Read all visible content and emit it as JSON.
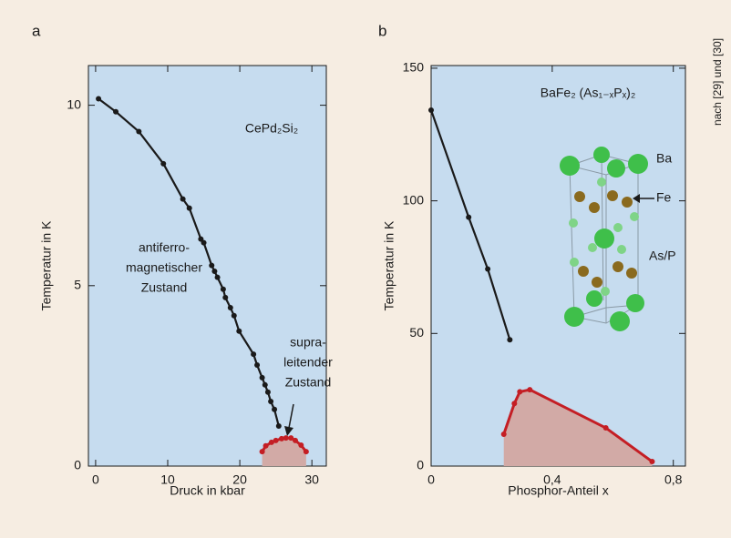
{
  "source": "nach [29] und [30]",
  "chart_data": [
    {
      "type": "line",
      "panel": "a",
      "title": "CePd₂Si₂",
      "xlabel": "Druck in kbar",
      "ylabel": "Temperatur in K",
      "xlim": [
        -1,
        32
      ],
      "ylim": [
        0,
        11.1
      ],
      "xticks": [
        0,
        10,
        20,
        30
      ],
      "yticks": [
        0,
        5,
        10
      ],
      "annotations": [
        [
          "antiferro-",
          "magnetischer",
          "Zustand"
        ],
        [
          "supra-",
          "leitender",
          "Zustand"
        ]
      ],
      "series": [
        {
          "color": "#1a1a1a",
          "x": [
            0.4,
            2.8,
            6.0,
            9.4,
            12.1,
            13.0,
            14.6,
            15.0,
            16.1,
            16.5,
            16.9,
            17.7,
            18.0,
            18.7,
            19.2,
            19.9,
            21.9,
            22.4,
            23.1,
            23.5,
            23.9,
            24.3,
            24.8,
            25.4
          ],
          "values": [
            10.18,
            9.82,
            9.27,
            8.38,
            7.4,
            7.15,
            6.29,
            6.19,
            5.56,
            5.4,
            5.23,
            4.9,
            4.67,
            4.39,
            4.17,
            3.74,
            3.1,
            2.8,
            2.45,
            2.25,
            2.05,
            1.79,
            1.57,
            1.11
          ]
        },
        {
          "color": "#c41e24",
          "fill": "#d2aaa6",
          "x": [
            23.1,
            23.6,
            24.4,
            25.0,
            25.8,
            26.4,
            27.1,
            27.7,
            28.5,
            29.2
          ],
          "values": [
            0.4,
            0.56,
            0.66,
            0.71,
            0.76,
            0.78,
            0.78,
            0.71,
            0.58,
            0.4
          ]
        }
      ]
    },
    {
      "type": "line",
      "panel": "b",
      "title": "BaFe₂ (As₁₋ₓPₓ)₂",
      "xlabel": "Phosphor-Anteil x",
      "ylabel": "Temperatur in K",
      "xlim": [
        0,
        0.84
      ],
      "ylim": [
        0,
        151
      ],
      "xticks": [
        0,
        {
          "value": 0.4,
          "label": "0,4"
        },
        {
          "value": 0.8,
          "label": "0,8"
        }
      ],
      "yticks": [
        0,
        50,
        100,
        150
      ],
      "structure_labels": [
        "Ba",
        "Fe",
        "As/P"
      ],
      "series": [
        {
          "color": "#1a1a1a",
          "x": [
            0,
            0.124,
            0.187,
            0.26
          ],
          "values": [
            134.2,
            93.8,
            74.3,
            47.6
          ]
        },
        {
          "color": "#c41e24",
          "fill": "#d2aaa6",
          "x": [
            0.24,
            0.275,
            0.293,
            0.326,
            0.577,
            0.73
          ],
          "values": [
            12,
            23.6,
            28,
            28.8,
            14.4,
            1.7
          ]
        }
      ]
    }
  ]
}
